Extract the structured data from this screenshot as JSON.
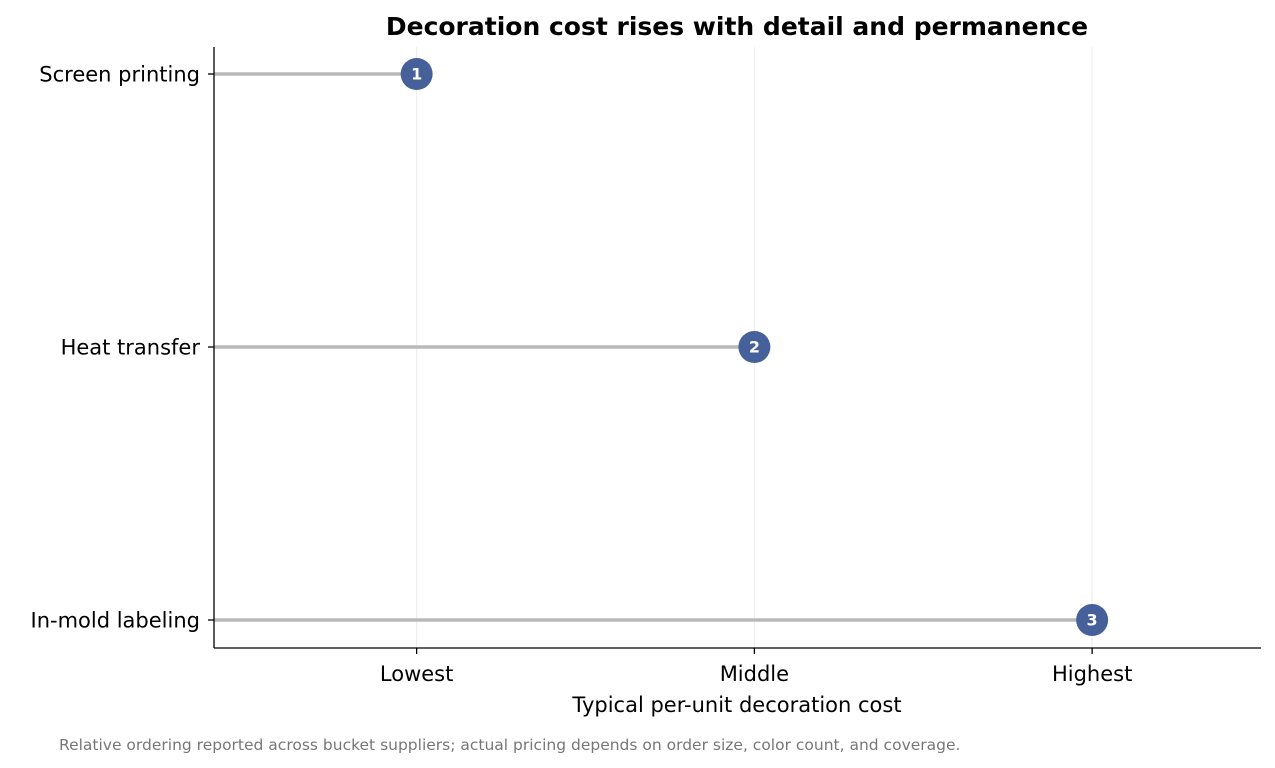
{
  "chart_data": {
    "type": "lollipop",
    "title": "Decoration cost rises with detail and permanence",
    "xlabel": "Typical per-unit decoration cost",
    "ylabel": "",
    "x_tick_labels": [
      "Lowest",
      "Middle",
      "Highest"
    ],
    "x_ticks": [
      1,
      2,
      3
    ],
    "xlim": [
      0.4,
      3.5
    ],
    "grid": "vertical",
    "categories": [
      "Screen printing",
      "Heat transfer",
      "In-mold labeling"
    ],
    "values": [
      1,
      2,
      3
    ],
    "point_labels": [
      "1",
      "2",
      "3"
    ],
    "footnote": "Relative ordering reported across bucket suppliers; actual pricing depends on order size, color count, and coverage."
  },
  "colors": {
    "marker": "#46609a",
    "stem": "#b9b9b9",
    "grid": "#ececec",
    "axis": "#000000",
    "footnote": "#777777"
  }
}
